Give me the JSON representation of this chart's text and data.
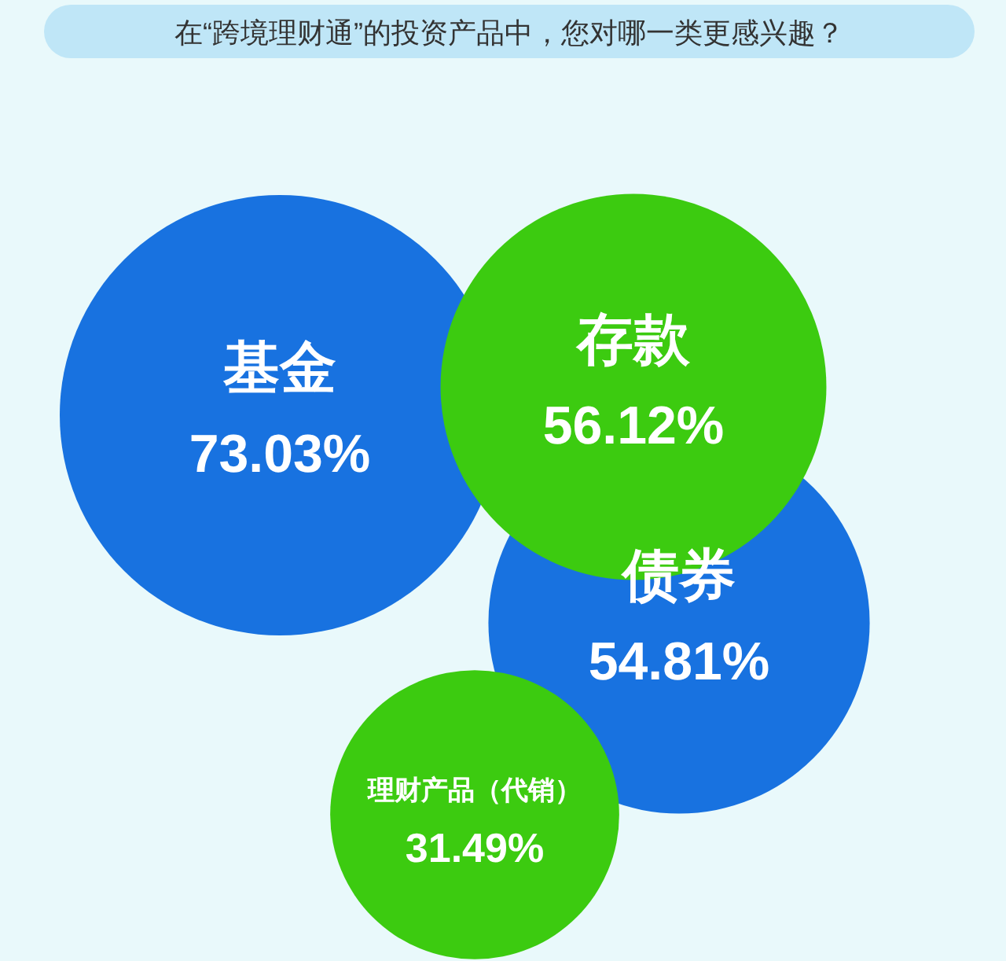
{
  "chart_data": {
    "type": "other",
    "title": "在“跨境理财通”的投资产品中，您对哪一类更感兴趣？",
    "categories": [
      "基金",
      "存款",
      "债券",
      "理财产品（代销）"
    ],
    "values": [
      73.03,
      56.12,
      54.81,
      31.49
    ],
    "value_labels": [
      "73.03%",
      "56.12%",
      "54.81%",
      "31.49%"
    ],
    "colors": [
      "#1872e0",
      "#3ccb10",
      "#1872e0",
      "#3ccb10"
    ]
  }
}
